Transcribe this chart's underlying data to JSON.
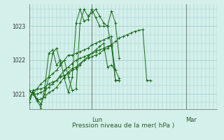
{
  "bg_color": "#d4f0eb",
  "grid_color": "#99cccc",
  "line_color": "#1a6b1a",
  "marker_color": "#1a6b1a",
  "xlabel": "Pression niveau de la mer( hPa )",
  "yticks": [
    1021,
    1022,
    1023
  ],
  "ylim": [
    1020.55,
    1023.65
  ],
  "xlim": [
    0,
    48
  ],
  "lun_x": 16,
  "mar_x": 40,
  "vline_color": "#888888",
  "series": [
    [
      0.0,
      1020.85,
      1.0,
      1021.1,
      2.0,
      1021.15,
      3.0,
      1021.15,
      4.0,
      1021.2,
      5.0,
      1021.3,
      6.0,
      1021.35,
      7.0,
      1021.4,
      8.0,
      1021.5,
      9.0,
      1021.55,
      10.0,
      1021.6,
      11.0,
      1021.7,
      12.0,
      1021.75,
      13.0,
      1021.85,
      14.0,
      1022.0,
      15.0,
      1022.05,
      16.0,
      1022.1,
      17.0,
      1022.15,
      18.0,
      1022.2,
      19.0,
      1022.3,
      20.0,
      1022.35,
      21.0,
      1022.45,
      22.0,
      1022.55,
      23.0,
      1022.65,
      24.0,
      1022.7,
      25.0,
      1022.75,
      26.0,
      1022.8,
      27.0,
      1022.85,
      28.0,
      1022.88,
      29.0,
      1022.9,
      30.0,
      1021.4,
      31.0,
      1021.4
    ],
    [
      0.0,
      1021.1,
      1.0,
      1021.0,
      2.0,
      1020.8,
      3.0,
      1020.85,
      4.0,
      1020.9,
      5.0,
      1021.05,
      6.0,
      1021.1,
      7.0,
      1021.2,
      8.0,
      1021.35,
      9.0,
      1021.5,
      10.0,
      1021.65,
      11.0,
      1021.75,
      12.0,
      1021.8,
      13.0,
      1021.9,
      14.0,
      1022.0,
      15.0,
      1022.1,
      16.0,
      1022.2,
      17.0,
      1022.3,
      18.0,
      1022.4,
      19.0,
      1022.5,
      20.0,
      1021.8,
      21.0,
      1021.85,
      22.0,
      1021.7,
      23.0,
      1021.45
    ],
    [
      0.0,
      1021.1,
      1.0,
      1021.0,
      2.0,
      1021.0,
      3.0,
      1021.05,
      4.0,
      1021.1,
      5.0,
      1021.2,
      6.0,
      1021.3,
      7.0,
      1021.4,
      8.0,
      1021.55,
      9.0,
      1021.7,
      10.0,
      1021.8,
      11.0,
      1021.9,
      12.0,
      1022.0,
      13.0,
      1022.05,
      14.0,
      1022.1,
      15.0,
      1022.15,
      16.0,
      1022.2,
      17.0,
      1022.25,
      18.0,
      1022.3,
      19.0,
      1022.35,
      20.0,
      1022.4,
      21.0,
      1022.45,
      22.0,
      1021.4,
      23.0,
      1021.4
    ],
    [
      0.0,
      1021.1,
      1.0,
      1021.0,
      2.0,
      1021.15,
      3.0,
      1021.3,
      4.0,
      1021.4,
      5.0,
      1021.5,
      6.0,
      1021.6,
      7.0,
      1021.7,
      8.0,
      1021.85,
      9.0,
      1022.0,
      10.0,
      1022.15,
      11.0,
      1022.15,
      12.0,
      1022.2,
      13.0,
      1022.25,
      14.0,
      1022.3,
      15.0,
      1022.35,
      16.0,
      1022.45,
      17.0,
      1022.5,
      18.0,
      1022.55,
      19.0,
      1022.6,
      20.0,
      1022.65,
      21.0,
      1022.7,
      22.0,
      1021.4,
      23.0,
      1021.4
    ],
    [
      0.0,
      1020.75,
      1.0,
      1021.1,
      2.0,
      1020.85,
      3.0,
      1020.7,
      4.0,
      1021.0,
      5.0,
      1021.5,
      6.0,
      1022.2,
      7.0,
      1022.35,
      8.0,
      1021.9,
      9.0,
      1022.0,
      10.0,
      1021.5,
      11.0,
      1021.1,
      12.0,
      1021.15,
      13.0,
      1023.1,
      14.0,
      1023.5,
      15.0,
      1023.3,
      16.0,
      1023.4,
      17.0,
      1023.5,
      18.0,
      1023.3,
      19.0,
      1023.1,
      20.0,
      1023.0,
      21.0,
      1023.45,
      22.0,
      1023.1,
      23.0,
      1022.05
    ],
    [
      0.0,
      1020.75,
      1.0,
      1021.05,
      2.0,
      1020.8,
      3.0,
      1020.6,
      4.0,
      1021.2,
      5.0,
      1022.2,
      6.0,
      1022.3,
      7.0,
      1021.85,
      8.0,
      1022.0,
      9.0,
      1021.45,
      10.0,
      1021.05,
      11.0,
      1021.5,
      12.0,
      1023.1,
      13.0,
      1023.5,
      14.0,
      1023.15,
      15.0,
      1023.2,
      16.0,
      1023.5,
      17.0,
      1023.25,
      18.0,
      1023.0,
      19.0,
      1023.0,
      20.0,
      1023.0,
      21.0,
      1022.4,
      22.0,
      1021.7
    ]
  ]
}
